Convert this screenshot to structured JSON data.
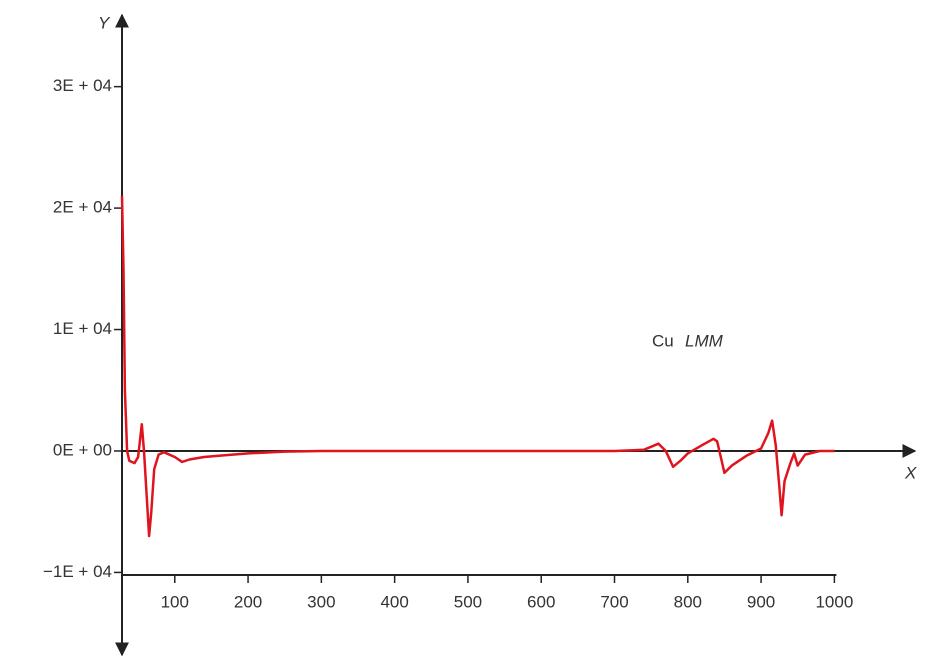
{
  "chart_data": {
    "type": "line",
    "x_label": "X",
    "y_label": "Y",
    "annotation": [
      "Cu",
      "LMM"
    ],
    "xlim": [
      28,
      1110
    ],
    "ylim": [
      -16800,
      35900
    ],
    "xticks": [
      100,
      200,
      300,
      400,
      500,
      600,
      700,
      800,
      900,
      1000
    ],
    "yticks": [
      {
        "value": -10000,
        "label": "−1E + 04"
      },
      {
        "value": 0,
        "label": "0E + 00"
      },
      {
        "value": 10000,
        "label": "1E + 04"
      },
      {
        "value": 20000,
        "label": "2E + 04"
      },
      {
        "value": 30000,
        "label": "3E + 04"
      }
    ],
    "grid": false,
    "series": [
      {
        "color": "#e0141e",
        "x": [
          28,
          30,
          32,
          35,
          38,
          45,
          50,
          55,
          58,
          62,
          65,
          68,
          72,
          78,
          85,
          100,
          110,
          120,
          140,
          160,
          200,
          250,
          300,
          350,
          400,
          500,
          600,
          700,
          740,
          760,
          770,
          780,
          790,
          800,
          820,
          835,
          840,
          845,
          850,
          860,
          880,
          900,
          910,
          915,
          920,
          925,
          928,
          932,
          940,
          945,
          950,
          960,
          980,
          1000
        ],
        "values": [
          21000,
          15000,
          5000,
          0,
          -800,
          -1000,
          -500,
          2200,
          0,
          -4000,
          -7000,
          -5000,
          -1500,
          -300,
          -100,
          -500,
          -900,
          -700,
          -500,
          -400,
          -200,
          -50,
          0,
          0,
          0,
          0,
          0,
          0,
          100,
          600,
          0,
          -1300,
          -800,
          -200,
          500,
          1000,
          800,
          -500,
          -1800,
          -1200,
          -400,
          200,
          1500,
          2500,
          500,
          -3000,
          -5300,
          -2500,
          -1000,
          -200,
          -1200,
          -300,
          0,
          0
        ]
      }
    ]
  }
}
